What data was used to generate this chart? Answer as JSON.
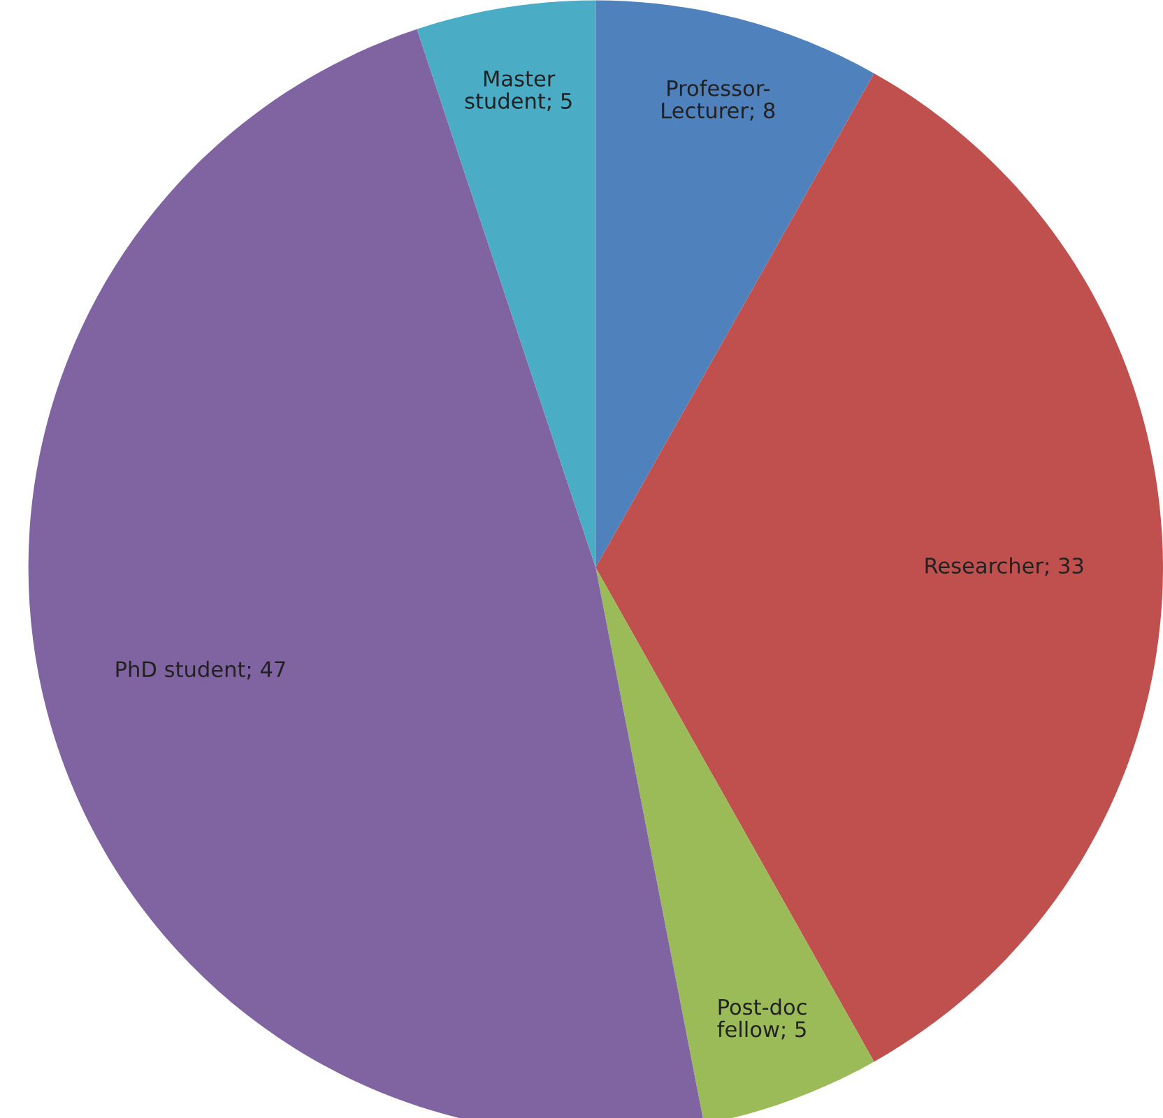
{
  "chart_data": {
    "type": "pie",
    "categories": [
      "Professor-Lecturer; 8",
      "Researcher; 33",
      "Post-doc fellow; 5",
      "PhD student; 47",
      "Master student; 5"
    ],
    "values": [
      8,
      33,
      5,
      47,
      5
    ],
    "colors": [
      "#4f81bd",
      "#c0504d",
      "#9bbb59",
      "#8064a2",
      "#4bacc6"
    ]
  }
}
